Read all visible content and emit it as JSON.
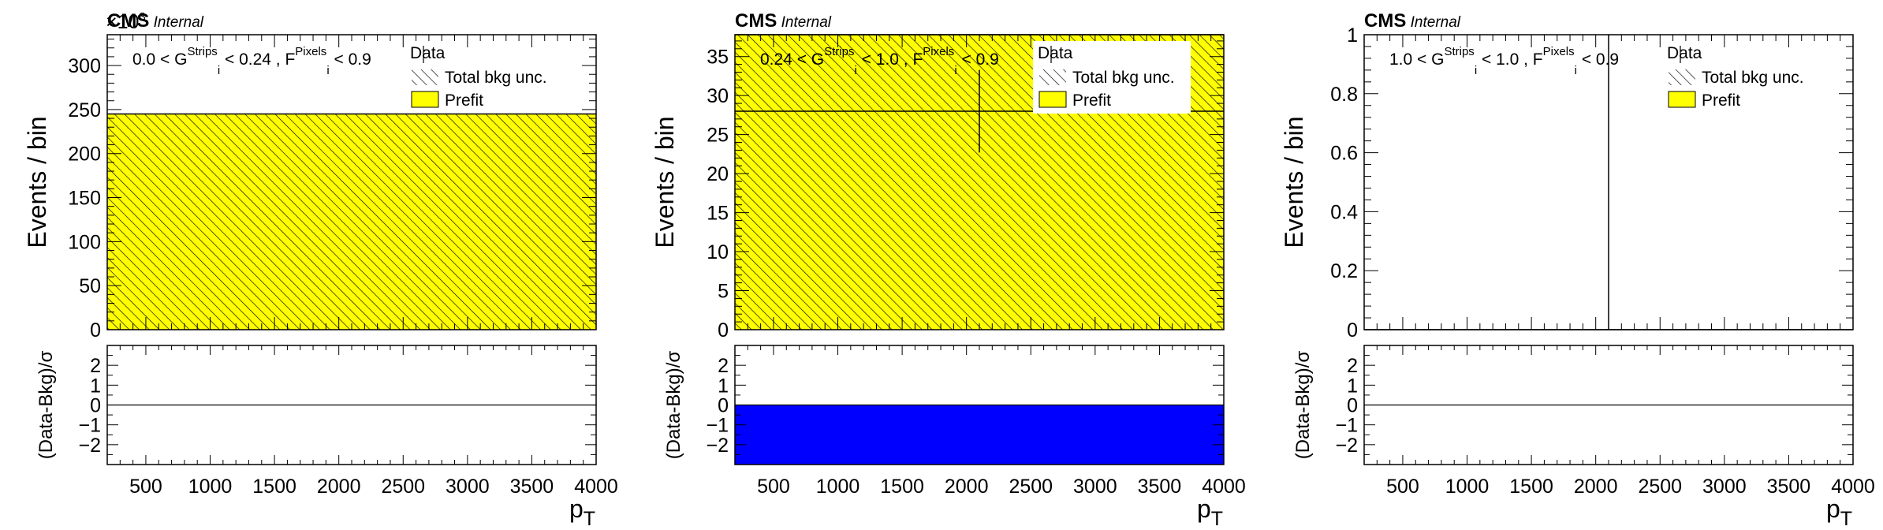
{
  "colors": {
    "prefit": "#ffff00",
    "pull": "#0000ff",
    "hatch": "#000000",
    "frame": "#000000"
  },
  "legend": {
    "data": "Data",
    "unc": "Total bkg unc.",
    "prefit": "Prefit"
  },
  "chart_data": [
    {
      "type": "histogram",
      "experiment": "CMS",
      "status": "Internal",
      "region": {
        "pre": "0.0 < G",
        "sup1": "Strips",
        "sub1": "i",
        "mid": " < 0.24 , F",
        "sup2": "Pixels",
        "sub2": "i",
        "post": " < 0.9"
      },
      "xlabel_main": "p",
      "xlabel_sub": "T",
      "ylabel": "Events / bin",
      "ratio_ylabel": "(Data-Bkg)/σ",
      "y_multiplier_text": "×10",
      "y_multiplier_exp": "3",
      "xlim": [
        200,
        4000
      ],
      "ylim": [
        0,
        335
      ],
      "yticks": [
        0,
        50,
        100,
        150,
        200,
        250,
        300
      ],
      "ytick_labels": [
        "0",
        "50",
        "100",
        "150",
        "200",
        "250",
        "300"
      ],
      "xticks": [
        500,
        1000,
        1500,
        2000,
        2500,
        3000,
        3500,
        4000
      ],
      "xtick_labels": [
        "500",
        "1000",
        "1500",
        "2000",
        "2500",
        "3000",
        "3500",
        "4000"
      ],
      "ratio_ylim": [
        -3.0,
        3.0
      ],
      "ratio_yticks": [
        -2,
        -1,
        0,
        1,
        2
      ],
      "ratio_ytick_labels": [
        "−2",
        "−1",
        "0",
        "1",
        "2"
      ],
      "bins": [
        [
          200,
          4000
        ]
      ],
      "prefit": [
        245
      ],
      "unc": [
        245
      ],
      "data": null,
      "pull": [
        0
      ]
    },
    {
      "type": "histogram",
      "experiment": "CMS",
      "status": "Internal",
      "region": {
        "pre": "0.24 < G",
        "sup1": "Strips",
        "sub1": "i",
        "mid": " < 1.0 , F",
        "sup2": "Pixels",
        "sub2": "i",
        "post": " < 0.9"
      },
      "xlabel_main": "p",
      "xlabel_sub": "T",
      "ylabel": "Events / bin",
      "ratio_ylabel": "(Data-Bkg)/σ",
      "xlim": [
        200,
        4000
      ],
      "ylim": [
        0,
        37.8
      ],
      "yticks": [
        0,
        5,
        10,
        15,
        20,
        25,
        30,
        35
      ],
      "ytick_labels": [
        "0",
        "5",
        "10",
        "15",
        "20",
        "25",
        "30",
        "35"
      ],
      "xticks": [
        500,
        1000,
        1500,
        2000,
        2500,
        3000,
        3500,
        4000
      ],
      "xtick_labels": [
        "500",
        "1000",
        "1500",
        "2000",
        "2500",
        "3000",
        "3500",
        "4000"
      ],
      "ratio_ylim": [
        -3.0,
        3.0
      ],
      "ratio_yticks": [
        -2,
        -1,
        0,
        1,
        2
      ],
      "ratio_ytick_labels": [
        "−2",
        "−1",
        "0",
        "1",
        "2"
      ],
      "bins": [
        [
          200,
          4000
        ]
      ],
      "prefit": [
        38
      ],
      "unc": [
        38
      ],
      "data": {
        "x": 2100,
        "y": 28,
        "yerr": [
          5.3,
          5.3
        ],
        "xerr": 1900
      },
      "pull": [
        -3.0
      ]
    },
    {
      "type": "histogram",
      "experiment": "CMS",
      "status": "Internal",
      "region": {
        "pre": "1.0 < G",
        "sup1": "Strips",
        "sub1": "i",
        "mid": " < 1.0 , F",
        "sup2": "Pixels",
        "sub2": "i",
        "post": " < 0.9"
      },
      "xlabel_main": "p",
      "xlabel_sub": "T",
      "ylabel": "Events / bin",
      "ratio_ylabel": "(Data-Bkg)/σ",
      "xlim": [
        200,
        4000
      ],
      "ylim": [
        0,
        1.0
      ],
      "yticks": [
        0,
        0.2,
        0.4,
        0.6,
        0.8,
        1
      ],
      "ytick_labels": [
        "0",
        "0.2",
        "0.4",
        "0.6",
        "0.8",
        "1"
      ],
      "xticks": [
        500,
        1000,
        1500,
        2000,
        2500,
        3000,
        3500,
        4000
      ],
      "xtick_labels": [
        "500",
        "1000",
        "1500",
        "2000",
        "2500",
        "3000",
        "3500",
        "4000"
      ],
      "ratio_ylim": [
        -3.0,
        3.0
      ],
      "ratio_yticks": [
        -2,
        -1,
        0,
        1,
        2
      ],
      "ratio_ytick_labels": [
        "−2",
        "−1",
        "0",
        "1",
        "2"
      ],
      "bins": [
        [
          200,
          4000
        ]
      ],
      "prefit": [
        0
      ],
      "unc": [
        0
      ],
      "data": {
        "x": 2100,
        "y": 0,
        "yerr": [
          0,
          1.15
        ],
        "xerr": 1900
      },
      "pull": [
        0
      ]
    }
  ]
}
